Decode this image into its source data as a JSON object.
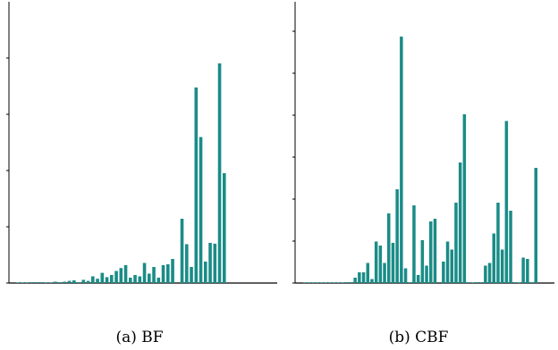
{
  "captions": [
    "(a) BF",
    "(b) CBF"
  ],
  "colors": {
    "bar": "#1a8c87",
    "axis": "#000000"
  },
  "chart_data": [
    {
      "type": "bar",
      "title": "",
      "xlabel": "",
      "ylabel": "",
      "ylim": [
        0,
        100
      ],
      "values": [
        0.2,
        0.2,
        0.2,
        0.3,
        0.3,
        0.3,
        0.2,
        0.2,
        0.5,
        0.3,
        0.5,
        0.8,
        1,
        0.3,
        1.2,
        0.8,
        2.5,
        1.6,
        3.8,
        2.2,
        3,
        4.5,
        5.6,
        6.7,
        2,
        3,
        2.5,
        7.5,
        3.5,
        6,
        2,
        6.7,
        7,
        9,
        0,
        24,
        14.5,
        6,
        73,
        54.5,
        8,
        15,
        14.7,
        82,
        41
      ]
    },
    {
      "type": "bar",
      "title": "",
      "xlabel": "",
      "ylabel": "",
      "ylim": [
        0,
        100
      ],
      "values": [
        0.2,
        0.2,
        0.2,
        0.2,
        0.2,
        0.2,
        0.2,
        0.2,
        0.2,
        0.2,
        0.3,
        0.3,
        2,
        4,
        4,
        7.5,
        1.5,
        15.5,
        14,
        7.5,
        26,
        15,
        35,
        92,
        5.5,
        0.3,
        29,
        3,
        16,
        6.5,
        23,
        24,
        0,
        8,
        15.5,
        12.5,
        30,
        45,
        63,
        0.3,
        0.2,
        0.3,
        0.3,
        6.5,
        7.5,
        18.5,
        30,
        12.5,
        60.5,
        27,
        0.3,
        0.2,
        9.5,
        9,
        0.3,
        43
      ]
    }
  ]
}
